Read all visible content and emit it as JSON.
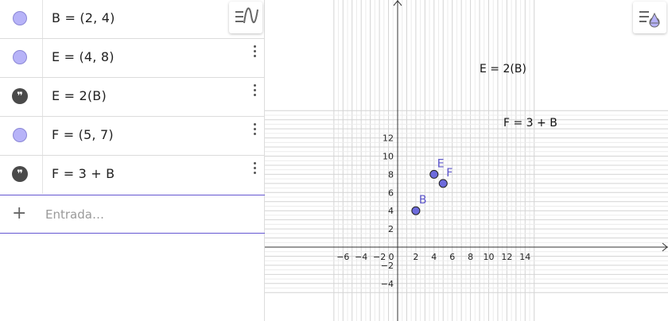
{
  "algebra": {
    "rows": [
      {
        "type": "point",
        "formula": "B = (2, 4)"
      },
      {
        "type": "text",
        "formula": "E = (4, 8)"
      },
      {
        "type": "text",
        "formula": "E = 2(B)",
        "icon": "quote-icon"
      },
      {
        "type": "point",
        "formula": "F = (5, 7)"
      },
      {
        "type": "text",
        "formula": "F = 3 + B",
        "icon": "quote-icon"
      }
    ],
    "input_placeholder": "Entrada…",
    "input_value": ""
  },
  "toolbar": {
    "algebra_style_icon": "style-bar-icon",
    "graphics_style_icon": "graphics-style-bar-icon"
  },
  "graphics": {
    "axes": {
      "x_ticks": [
        "−6",
        "−4",
        "−2",
        "0",
        "2",
        "4",
        "6",
        "8",
        "10",
        "12",
        "14"
      ],
      "y_ticks": [
        "12",
        "10",
        "8",
        "6",
        "4",
        "2",
        "−2",
        "−4"
      ]
    },
    "points": [
      {
        "name": "B",
        "x": 2,
        "y": 4
      },
      {
        "name": "E",
        "x": 4,
        "y": 8
      },
      {
        "name": "F",
        "x": 5,
        "y": 7
      }
    ],
    "texts": [
      {
        "text": "E = 2(B)"
      },
      {
        "text": "F = 3 + B"
      }
    ],
    "colors": {
      "point_fill": "#6d6bdc",
      "point_label": "#5b54c9",
      "marble": "#b7b3f8",
      "accent": "#6557d2"
    }
  }
}
